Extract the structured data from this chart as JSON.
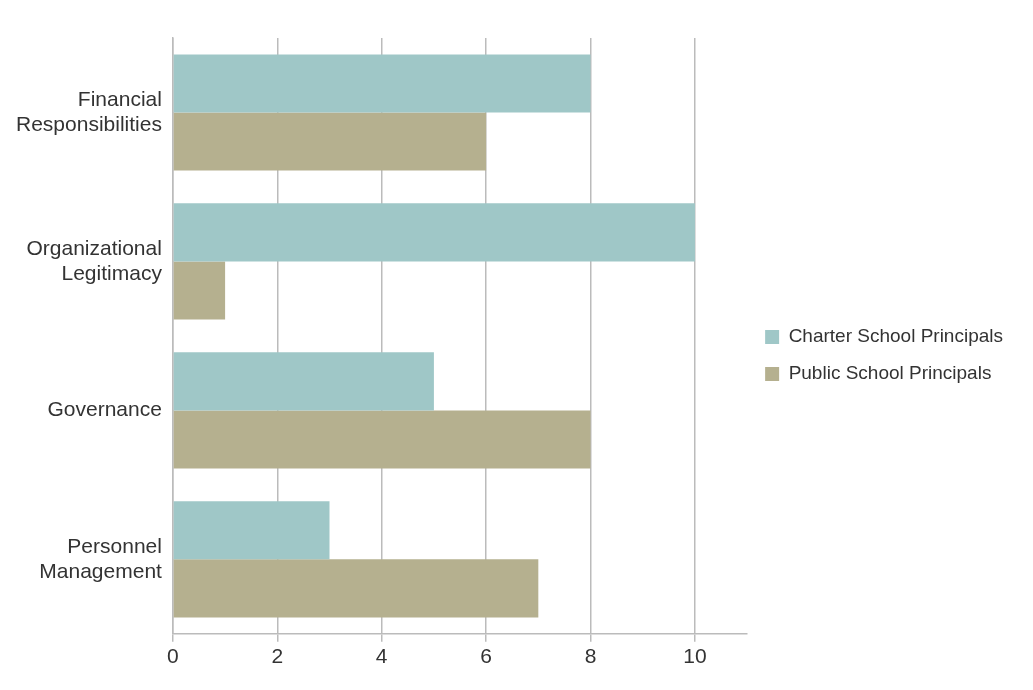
{
  "chart_data": {
    "type": "bar",
    "orientation": "horizontal",
    "categories": [
      "Financial Responsibilities",
      "Organizational Legitimacy",
      "Governance",
      "Personnel Management"
    ],
    "series": [
      {
        "name": "Charter School Principals",
        "color": "#9fc7c7",
        "values": [
          8,
          10,
          5,
          3
        ]
      },
      {
        "name": "Public School Principals",
        "color": "#b5b08f",
        "values": [
          6,
          1,
          8,
          7
        ]
      }
    ],
    "xlim": [
      0,
      11
    ],
    "xticks": [
      0,
      2,
      4,
      6,
      8,
      10
    ],
    "grid": "x",
    "legend": "right"
  }
}
